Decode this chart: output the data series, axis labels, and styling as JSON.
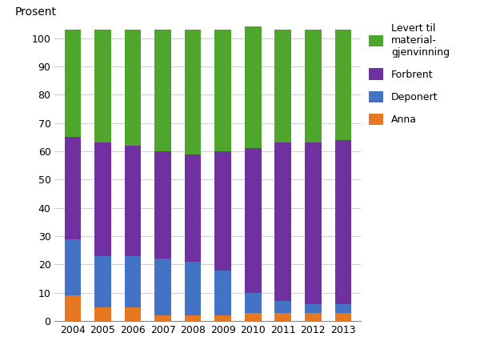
{
  "years": [
    2004,
    2005,
    2006,
    2007,
    2008,
    2009,
    2010,
    2011,
    2012,
    2013
  ],
  "anna": [
    9,
    5,
    5,
    2,
    2,
    2,
    3,
    3,
    3,
    3
  ],
  "deponert": [
    20,
    18,
    18,
    20,
    19,
    16,
    7,
    4,
    3,
    3
  ],
  "forbrent": [
    36,
    40,
    39,
    38,
    38,
    42,
    51,
    56,
    57,
    58
  ],
  "levert": [
    38,
    40,
    41,
    43,
    44,
    43,
    43,
    40,
    40,
    39
  ],
  "color_anna": "#e87722",
  "color_deponert": "#4472c4",
  "color_forbrent": "#7030a0",
  "color_levert": "#4ea72c",
  "ylabel": "Prosent",
  "ylim": [
    0,
    105
  ],
  "yticks": [
    0,
    10,
    20,
    30,
    40,
    50,
    60,
    70,
    80,
    90,
    100
  ],
  "legend_levert": "Levert til\nmaterial-\ngjenvinning",
  "legend_forbrent": "Forbrent",
  "legend_deponert": "Deponert",
  "legend_anna": "Anna",
  "bar_width": 0.55,
  "figsize": [
    6.1,
    4.26
  ],
  "dpi": 100
}
